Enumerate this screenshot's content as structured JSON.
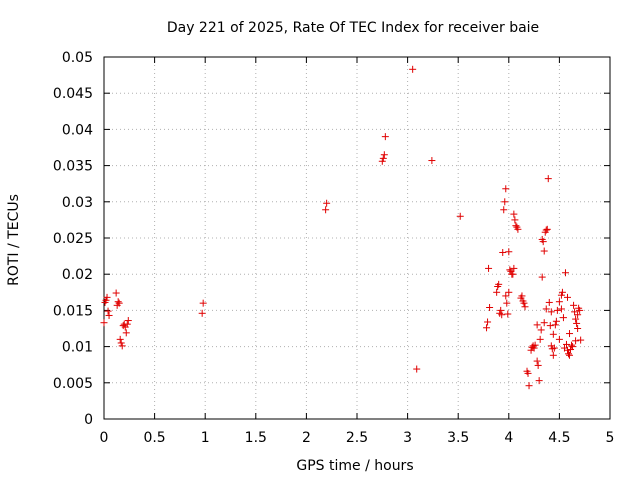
{
  "chart_data": {
    "type": "scatter",
    "title": "Day 221 of 2025, Rate Of TEC Index for receiver baie",
    "xlabel": "GPS time / hours",
    "ylabel": "ROTI / TECUs",
    "xlim": [
      0,
      5
    ],
    "ylim": [
      0,
      0.05
    ],
    "xticks": [
      "0",
      "0.5",
      "1",
      "1.5",
      "2",
      "2.5",
      "3",
      "3.5",
      "4",
      "4.5",
      "5"
    ],
    "yticks": [
      "0",
      "0.005",
      "0.01",
      "0.015",
      "0.02",
      "0.025",
      "0.03",
      "0.035",
      "0.04",
      "0.045",
      "0.05"
    ],
    "grid": true,
    "marker": "plus",
    "color": "#e00000",
    "series": [
      {
        "points": [
          [
            0.0,
            0.0133
          ],
          [
            0.01,
            0.0161
          ],
          [
            0.02,
            0.0164
          ],
          [
            0.03,
            0.0168
          ],
          [
            0.04,
            0.0149
          ],
          [
            0.05,
            0.0143
          ],
          [
            0.12,
            0.0174
          ],
          [
            0.13,
            0.0157
          ],
          [
            0.14,
            0.0162
          ],
          [
            0.15,
            0.016
          ],
          [
            0.16,
            0.011
          ],
          [
            0.17,
            0.0105
          ],
          [
            0.18,
            0.0101
          ],
          [
            0.19,
            0.0129
          ],
          [
            0.2,
            0.0131
          ],
          [
            0.21,
            0.0127
          ],
          [
            0.22,
            0.0119
          ],
          [
            0.23,
            0.0131
          ],
          [
            0.24,
            0.0136
          ],
          [
            0.97,
            0.0146
          ],
          [
            0.98,
            0.016
          ],
          [
            2.19,
            0.0289
          ],
          [
            2.2,
            0.0298
          ],
          [
            2.75,
            0.0356
          ],
          [
            2.76,
            0.036
          ],
          [
            2.77,
            0.0365
          ],
          [
            2.78,
            0.039
          ],
          [
            3.05,
            0.0483
          ],
          [
            3.09,
            0.0069
          ],
          [
            3.24,
            0.0357
          ],
          [
            3.52,
            0.028
          ],
          [
            3.78,
            0.0126
          ],
          [
            3.79,
            0.0134
          ],
          [
            3.8,
            0.0208
          ],
          [
            3.81,
            0.0154
          ],
          [
            3.88,
            0.0175
          ],
          [
            3.89,
            0.0183
          ],
          [
            3.9,
            0.0186
          ],
          [
            3.91,
            0.0146
          ],
          [
            3.92,
            0.015
          ],
          [
            3.93,
            0.0144
          ],
          [
            3.94,
            0.023
          ],
          [
            3.95,
            0.0289
          ],
          [
            3.96,
            0.03
          ],
          [
            3.97,
            0.0318
          ],
          [
            3.98,
            0.016
          ],
          [
            3.99,
            0.0145
          ],
          [
            4.0,
            0.0231
          ],
          [
            4.01,
            0.0206
          ],
          [
            4.02,
            0.0204
          ],
          [
            4.03,
            0.02
          ],
          [
            4.04,
            0.02
          ],
          [
            4.05,
            0.0283
          ],
          [
            4.06,
            0.0275
          ],
          [
            4.07,
            0.0267
          ],
          [
            4.08,
            0.0265
          ],
          [
            4.09,
            0.0262
          ],
          [
            4.12,
            0.0167
          ],
          [
            4.14,
            0.0163
          ],
          [
            4.15,
            0.016
          ],
          [
            4.16,
            0.0155
          ],
          [
            4.18,
            0.0066
          ],
          [
            4.19,
            0.0063
          ],
          [
            4.2,
            0.0046
          ],
          [
            4.22,
            0.0095
          ],
          [
            4.23,
            0.0099
          ],
          [
            4.24,
            0.0101
          ],
          [
            4.25,
            0.0098
          ],
          [
            4.26,
            0.0102
          ],
          [
            4.28,
            0.008
          ],
          [
            4.29,
            0.0074
          ],
          [
            4.3,
            0.0053
          ],
          [
            4.31,
            0.011
          ],
          [
            4.32,
            0.0123
          ],
          [
            4.33,
            0.0248
          ],
          [
            4.34,
            0.0245
          ],
          [
            4.35,
            0.0232
          ],
          [
            4.36,
            0.0258
          ],
          [
            4.37,
            0.0261
          ],
          [
            4.38,
            0.0262
          ],
          [
            4.39,
            0.0332
          ],
          [
            4.4,
            0.0161
          ],
          [
            4.41,
            0.0129
          ],
          [
            4.42,
            0.0101
          ],
          [
            4.43,
            0.0097
          ],
          [
            4.44,
            0.0088
          ],
          [
            4.45,
            0.0098
          ],
          [
            4.46,
            0.013
          ],
          [
            4.47,
            0.0135
          ],
          [
            4.48,
            0.015
          ],
          [
            4.5,
            0.0162
          ],
          [
            4.52,
            0.0171
          ],
          [
            4.53,
            0.0175
          ],
          [
            4.54,
            0.014
          ],
          [
            4.55,
            0.0098
          ],
          [
            4.56,
            0.0202
          ],
          [
            4.57,
            0.0103
          ],
          [
            4.58,
            0.0095
          ],
          [
            4.59,
            0.009
          ],
          [
            4.6,
            0.0088
          ],
          [
            4.61,
            0.0096
          ],
          [
            4.62,
            0.0102
          ],
          [
            4.63,
            0.01
          ],
          [
            4.64,
            0.0157
          ],
          [
            4.65,
            0.0148
          ],
          [
            4.66,
            0.0138
          ],
          [
            4.67,
            0.0132
          ],
          [
            4.68,
            0.0144
          ],
          [
            4.69,
            0.0153
          ],
          [
            4.7,
            0.015
          ],
          [
            4.71,
            0.0109
          ],
          [
            4.13,
            0.017
          ],
          [
            4.33,
            0.0196
          ],
          [
            4.37,
            0.0152
          ],
          [
            4.42,
            0.0148
          ],
          [
            4.5,
            0.011
          ],
          [
            4.58,
            0.0168
          ],
          [
            4.66,
            0.0108
          ],
          [
            4.05,
            0.0208
          ],
          [
            4.0,
            0.0175
          ],
          [
            3.97,
            0.017
          ],
          [
            4.44,
            0.0117
          ],
          [
            4.35,
            0.0133
          ],
          [
            4.6,
            0.0118
          ],
          [
            4.68,
            0.0125
          ],
          [
            4.52,
            0.0152
          ],
          [
            4.28,
            0.013
          ]
        ]
      }
    ]
  }
}
